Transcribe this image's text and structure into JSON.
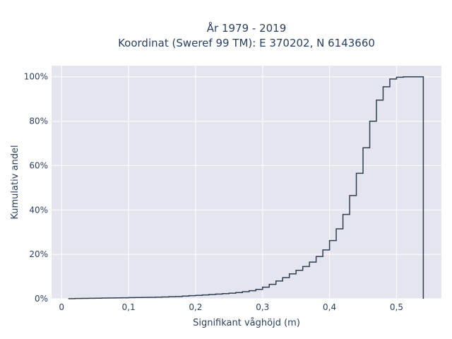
{
  "chart_data": {
    "type": "step",
    "title_lines": [
      "År 1979 - 2019",
      "Koordinat (Sweref 99 TM): E 370202, N 6143660"
    ],
    "xlabel": "Signifikant våghöjd (m)",
    "ylabel": "Kumulativ andel",
    "xlim": [
      -0.015,
      0.567
    ],
    "ylim": [
      0,
      1.05
    ],
    "x_ticks": [
      0,
      0.1,
      0.2,
      0.3,
      0.4,
      0.5
    ],
    "x_tick_labels": [
      "0",
      "0,1",
      "0,2",
      "0,3",
      "0,4",
      "0,5"
    ],
    "y_ticks": [
      0,
      0.2,
      0.4,
      0.6,
      0.8,
      1.0
    ],
    "y_tick_labels": [
      "0%",
      "20%",
      "40%",
      "60%",
      "80%",
      "100%"
    ],
    "grid": true,
    "background": "#e5e5f0",
    "line_color": "#2f3e4e",
    "series": [
      {
        "x": [
          0.01,
          0.02,
          0.03,
          0.04,
          0.05,
          0.06,
          0.07,
          0.08,
          0.09,
          0.1,
          0.11,
          0.12,
          0.13,
          0.14,
          0.15,
          0.16,
          0.17,
          0.18,
          0.19,
          0.2,
          0.21,
          0.22,
          0.23,
          0.24,
          0.25,
          0.26,
          0.27,
          0.28,
          0.29,
          0.3,
          0.31,
          0.32,
          0.33,
          0.34,
          0.35,
          0.36,
          0.37,
          0.38,
          0.39,
          0.4,
          0.41,
          0.42,
          0.43,
          0.44,
          0.45,
          0.46,
          0.47,
          0.48,
          0.49,
          0.5,
          0.51,
          0.52,
          0.53,
          0.54
        ],
        "y": [
          0.0005,
          0.001,
          0.0015,
          0.002,
          0.0025,
          0.003,
          0.0035,
          0.004,
          0.0045,
          0.005,
          0.0055,
          0.006,
          0.0065,
          0.007,
          0.008,
          0.009,
          0.01,
          0.012,
          0.014,
          0.015,
          0.017,
          0.019,
          0.021,
          0.023,
          0.025,
          0.028,
          0.032,
          0.036,
          0.042,
          0.052,
          0.065,
          0.08,
          0.095,
          0.112,
          0.128,
          0.145,
          0.165,
          0.19,
          0.22,
          0.262,
          0.315,
          0.38,
          0.465,
          0.565,
          0.68,
          0.8,
          0.895,
          0.955,
          0.99,
          0.998,
          1.0,
          1.0,
          1.0,
          0.0
        ]
      }
    ]
  }
}
